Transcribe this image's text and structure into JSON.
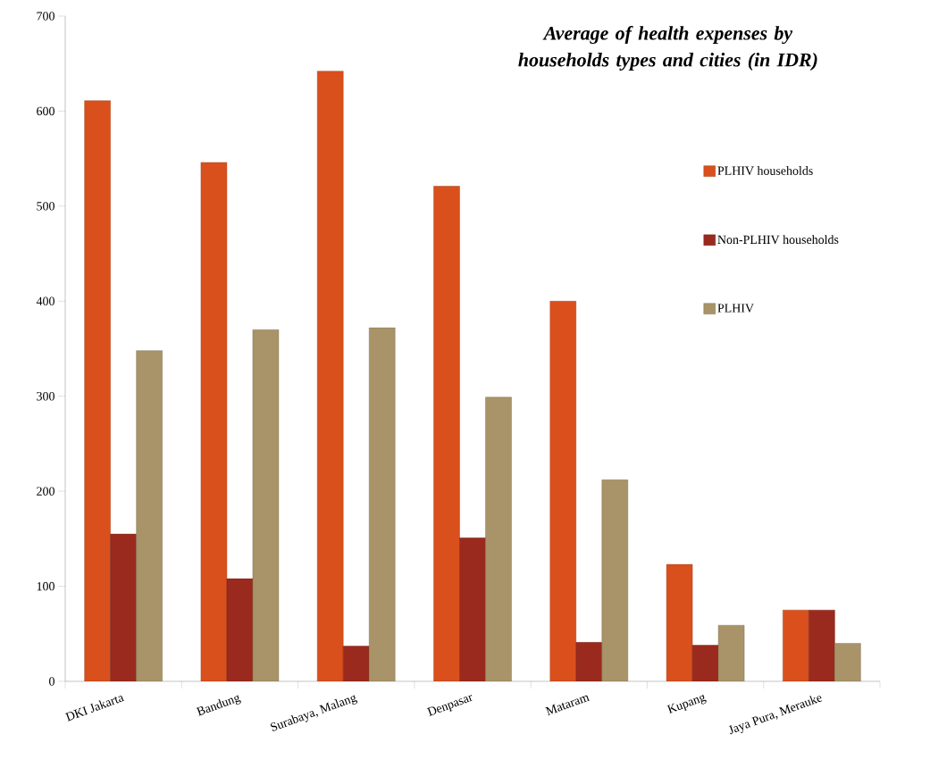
{
  "chart_data": {
    "type": "bar",
    "title": "Average of health expenses by households types and cities (in IDR)",
    "categories": [
      "DKI Jakarta",
      "Bandung",
      "Surabaya, Malang",
      "Denpasar",
      "Mataram",
      "Kupang",
      "Jaya Pura, Merauke"
    ],
    "series": [
      {
        "name": "PLHIV households",
        "color": "#d9501c",
        "values": [
          611,
          546,
          642,
          521,
          400,
          123,
          75
        ]
      },
      {
        "name": "Non-PLHIV households",
        "color": "#9b2a1e",
        "values": [
          155,
          108,
          37,
          151,
          41,
          38,
          75
        ]
      },
      {
        "name": "PLHIV",
        "color": "#a89468",
        "values": [
          348,
          370,
          372,
          299,
          212,
          59,
          40
        ]
      }
    ],
    "ylim": [
      0,
      700
    ],
    "yticks": [
      0,
      100,
      200,
      300,
      400,
      500,
      600,
      700
    ],
    "legend": "right"
  }
}
